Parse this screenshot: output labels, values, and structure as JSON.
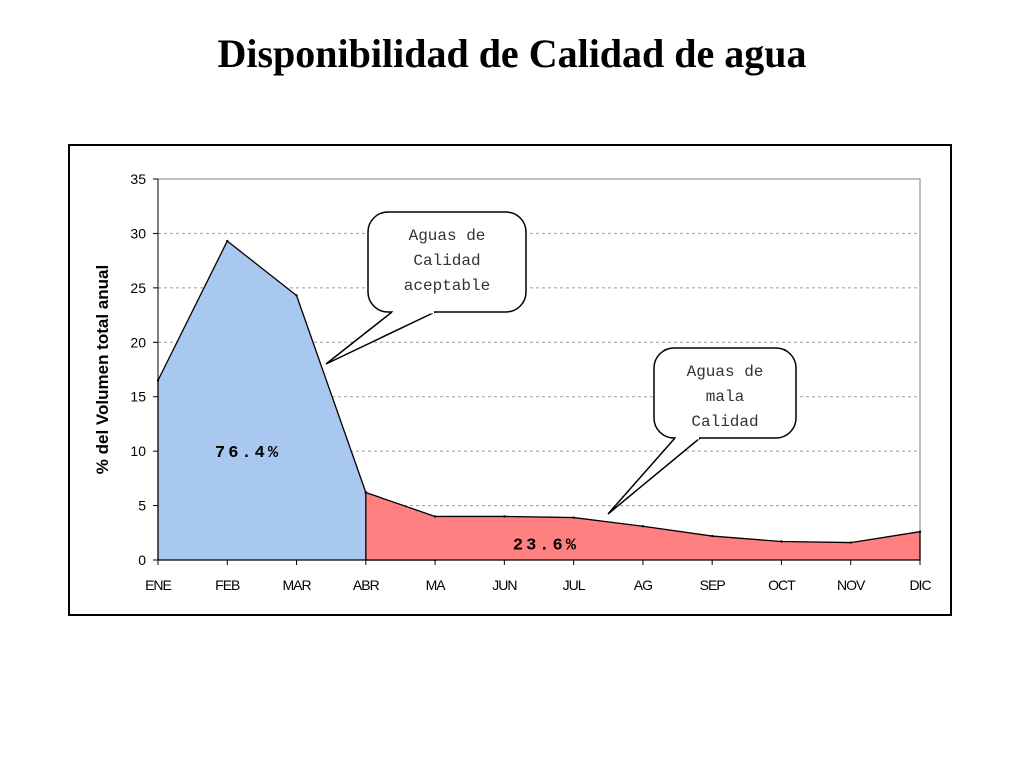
{
  "slide": {
    "title": "Disponibilidad de Calidad de agua"
  },
  "chart_data": {
    "type": "area",
    "categories": [
      "ENE",
      "FEB",
      "MAR",
      "ABR",
      "MA",
      "JUN",
      "JUL",
      "AG",
      "SEP",
      "OCT",
      "NOV",
      "DIC"
    ],
    "series": [
      {
        "values": [
          16.5,
          29.3,
          24.3,
          6.2,
          0,
          null,
          null,
          null,
          null,
          null,
          null,
          null
        ],
        "color": "#a9c8ef",
        "total_label": "76.4%"
      },
      {
        "values": [
          null,
          null,
          null,
          6.2,
          4.0,
          4.0,
          3.9,
          3.1,
          2.2,
          1.7,
          1.6,
          2.6
        ],
        "color": "#ff8080",
        "total_label": "23.6%"
      }
    ],
    "xlabel": "",
    "ylabel": "% del Volumen total anual",
    "ylim": [
      0,
      35
    ],
    "yticks": [
      0,
      5,
      10,
      15,
      20,
      25,
      30,
      35
    ],
    "grid": "horizontal dashed",
    "annotations": [
      {
        "lines": [
          "Aguas de",
          "Calidad",
          "aceptable"
        ],
        "points_to": "blue area"
      },
      {
        "lines": [
          "Aguas de",
          "mala",
          "Calidad"
        ],
        "points_to": "red area"
      }
    ]
  }
}
